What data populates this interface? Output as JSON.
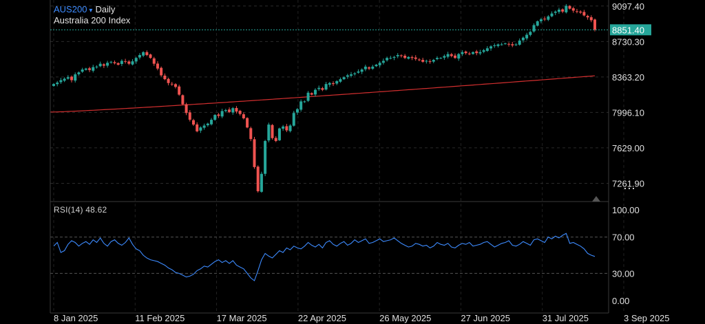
{
  "header": {
    "symbol": "AUS200",
    "caret": "▾",
    "timeframe": "Daily",
    "description": "Australia 200 Index"
  },
  "rsi": {
    "label": "RSI(14)",
    "value": "48.62",
    "ticks": [
      "100.00",
      "70.00",
      "30.00",
      "0.00"
    ]
  },
  "price_axis": {
    "ticks": [
      "9097.40",
      "8730.30",
      "8363.20",
      "7996.10",
      "7629.00",
      "7261.90"
    ],
    "last_price": "8851.40"
  },
  "x_axis": {
    "ticks": [
      "8 Jan 2025",
      "11 Feb 2025",
      "17 Mar 2025",
      "22 Apr 2025",
      "26 May 2025",
      "27 Jun 2025",
      "31 Jul 2025",
      "3 Sep 2025"
    ]
  },
  "more_icon": "⋯",
  "colors": {
    "up": "#26a69a",
    "down": "#ef5350",
    "ma": "#d32f2f",
    "rsi": "#3d8bff",
    "last_price_tag": "#26a69a"
  },
  "chart_data": [
    {
      "type": "candlestick",
      "title": "AUS200 Daily",
      "ylim": [
        7080,
        9160
      ],
      "moving_average": {
        "start": 8000,
        "end": 8375
      },
      "close_series": [
        8290,
        8305,
        8330,
        8345,
        8360,
        8330,
        8390,
        8410,
        8440,
        8450,
        8435,
        8465,
        8470,
        8500,
        8480,
        8510,
        8520,
        8505,
        8490,
        8530,
        8520,
        8500,
        8525,
        8560,
        8590,
        8620,
        8590,
        8560,
        8500,
        8450,
        8380,
        8340,
        8300,
        8290,
        8260,
        8180,
        8080,
        7990,
        7920,
        7870,
        7800,
        7840,
        7860,
        7880,
        7920,
        7970,
        7960,
        8010,
        8020,
        8000,
        8040,
        8005,
        7980,
        7935,
        7840,
        7720,
        7430,
        7180,
        7360,
        7700,
        7870,
        7730,
        7700,
        7830,
        7850,
        7810,
        7860,
        7990,
        8030,
        8110,
        8110,
        8200,
        8180,
        8230,
        8250,
        8230,
        8290,
        8300,
        8290,
        8320,
        8340,
        8360,
        8380,
        8390,
        8400,
        8420,
        8440,
        8470,
        8450,
        8470,
        8490,
        8510,
        8530,
        8560,
        8560,
        8570,
        8590,
        8580,
        8560,
        8570,
        8560,
        8550,
        8540,
        8520,
        8530,
        8520,
        8540,
        8560,
        8560,
        8580,
        8600,
        8580,
        8560,
        8600,
        8620,
        8610,
        8600,
        8620,
        8610,
        8620,
        8640,
        8660,
        8680,
        8690,
        8700,
        8700,
        8710,
        8700,
        8690,
        8700,
        8740,
        8770,
        8800,
        8830,
        8900,
        8940,
        8960,
        8960,
        8990,
        9020,
        9040,
        9060,
        9040,
        9100,
        9070,
        9050,
        9040,
        9030,
        9000,
        8980,
        8950,
        8851.4
      ],
      "rsi_series": [
        60,
        64,
        53,
        55,
        62,
        66,
        64,
        60,
        63,
        65,
        62,
        67,
        64,
        69,
        63,
        60,
        65,
        67,
        63,
        61,
        64,
        69,
        62,
        57,
        55,
        50,
        47,
        45,
        44,
        43,
        41,
        39,
        36,
        34,
        31,
        30,
        28,
        26,
        27,
        29,
        33,
        35,
        38,
        37,
        40,
        43,
        45,
        42,
        44,
        41,
        44,
        39,
        37,
        35,
        30,
        25,
        22,
        33,
        45,
        52,
        49,
        47,
        51,
        55,
        53,
        58,
        56,
        60,
        58,
        57,
        60,
        64,
        61,
        59,
        62,
        58,
        64,
        66,
        62,
        60,
        63,
        65,
        61,
        63,
        67,
        64,
        66,
        68,
        63,
        64,
        66,
        68,
        65,
        66,
        67,
        69,
        66,
        63,
        61,
        59,
        60,
        63,
        62,
        60,
        61,
        58,
        60,
        64,
        62,
        61,
        63,
        59,
        58,
        61,
        63,
        62,
        64,
        60,
        61,
        62,
        64,
        65,
        62,
        59,
        61,
        63,
        64,
        66,
        61,
        60,
        62,
        65,
        63,
        61,
        67,
        68,
        66,
        64,
        70,
        68,
        71,
        69,
        72,
        74,
        63,
        64,
        62,
        60,
        57,
        52,
        50,
        48.62
      ]
    }
  ]
}
